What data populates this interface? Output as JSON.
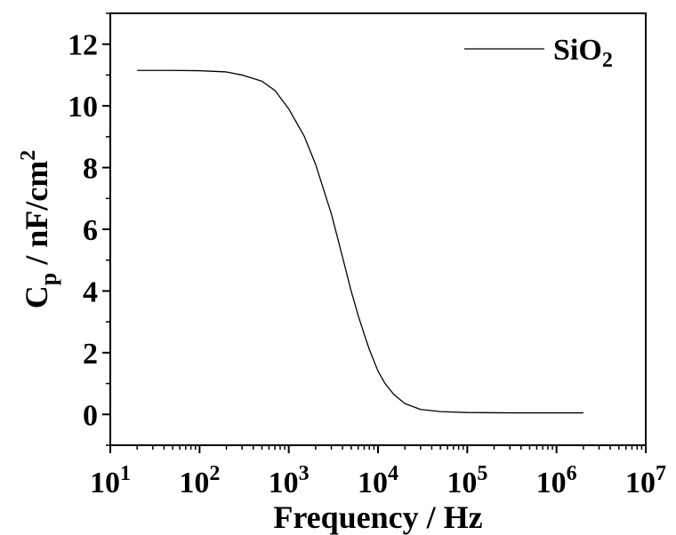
{
  "chart_data": {
    "type": "line",
    "xscale": "log",
    "xlim": [
      10,
      10000000
    ],
    "ylim": [
      -1,
      13
    ],
    "xlabel": "Frequency / Hz",
    "ylabel": {
      "main": "C",
      "sub": "p",
      "rest": " / nF/cm",
      "sup": "2"
    },
    "x_ticks": [
      {
        "base": "10",
        "exp": "1",
        "value": 10
      },
      {
        "base": "10",
        "exp": "2",
        "value": 100
      },
      {
        "base": "10",
        "exp": "3",
        "value": 1000
      },
      {
        "base": "10",
        "exp": "4",
        "value": 10000
      },
      {
        "base": "10",
        "exp": "5",
        "value": 100000
      },
      {
        "base": "10",
        "exp": "6",
        "value": 1000000
      },
      {
        "base": "10",
        "exp": "7",
        "value": 10000000
      }
    ],
    "y_ticks": [
      {
        "label": "0",
        "value": 0
      },
      {
        "label": "2",
        "value": 2
      },
      {
        "label": "4",
        "value": 4
      },
      {
        "label": "6",
        "value": 6
      },
      {
        "label": "8",
        "value": 8
      },
      {
        "label": "10",
        "value": 10
      },
      {
        "label": "12",
        "value": 12
      }
    ],
    "grid": false,
    "legend_position": "top-right",
    "series": [
      {
        "name": {
          "main": "SiO",
          "sub": "2"
        },
        "color": "#000000",
        "x": [
          20,
          50,
          100,
          200,
          300,
          500,
          700,
          1000,
          1500,
          2000,
          3000,
          4000,
          5000,
          6000,
          7000,
          8000,
          10000,
          12000,
          15000,
          20000,
          30000,
          50000,
          100000,
          300000,
          1000000,
          2000000
        ],
        "y": [
          11.15,
          11.15,
          11.14,
          11.1,
          11.0,
          10.8,
          10.5,
          9.9,
          9.0,
          8.1,
          6.5,
          5.1,
          4.0,
          3.2,
          2.6,
          2.1,
          1.4,
          1.0,
          0.65,
          0.35,
          0.16,
          0.09,
          0.06,
          0.05,
          0.05,
          0.05
        ]
      }
    ]
  }
}
